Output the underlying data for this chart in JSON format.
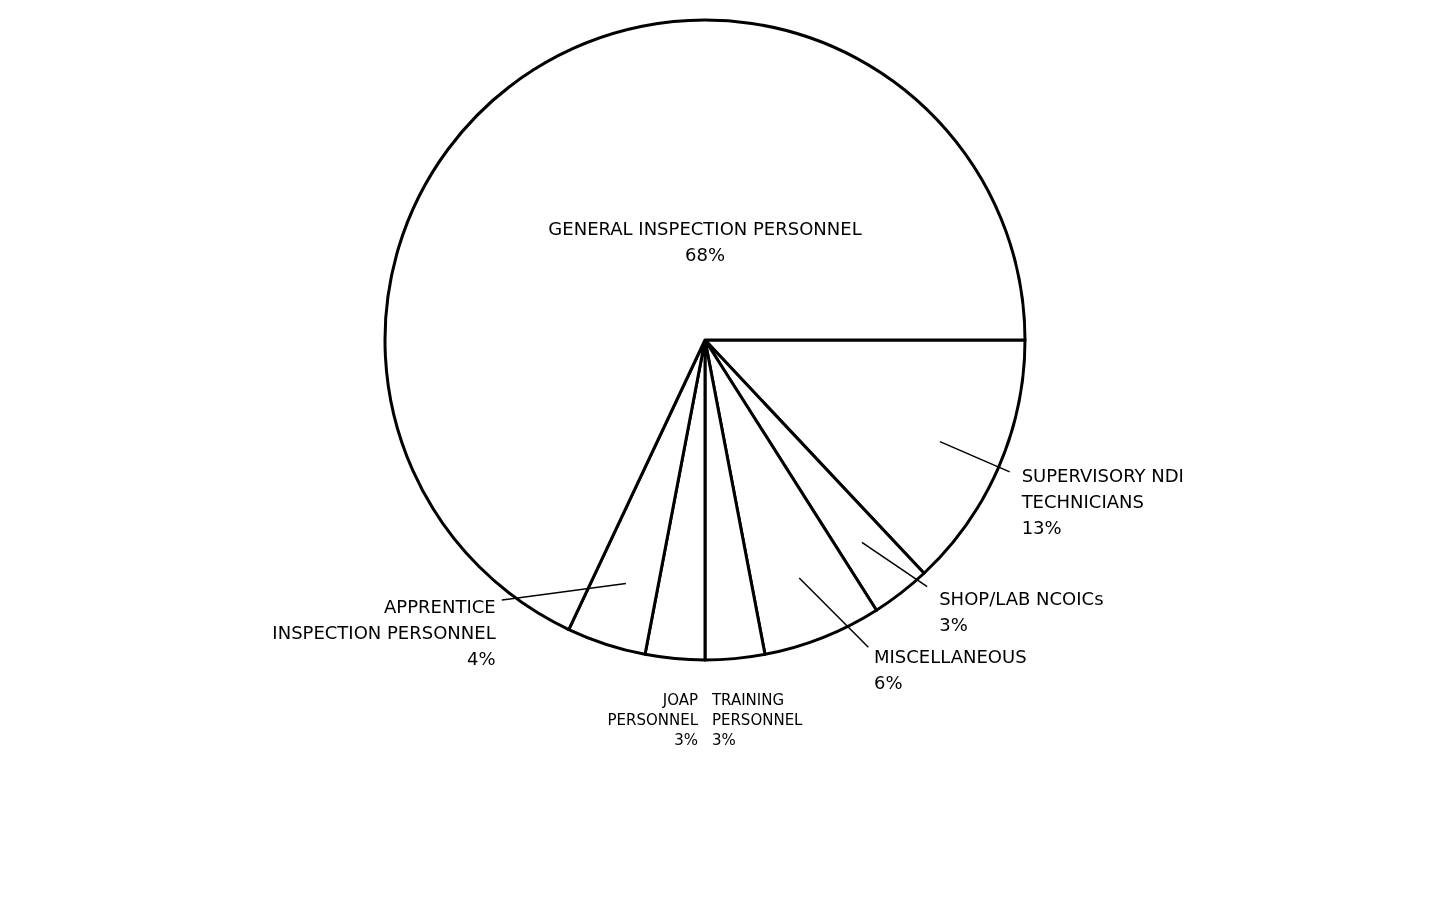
{
  "chart_data": {
    "type": "pie",
    "categories": [
      "SUPERVISORY NDI TECHNICIANS",
      "SHOP/LAB NCOICs",
      "MISCELLANEOUS",
      "TRAINING PERSONNEL",
      "JOAP PERSONNEL",
      "APPRENTICE INSPECTION PERSONNEL",
      "GENERAL INSPECTION PERSONNEL"
    ],
    "values": [
      13,
      3,
      6,
      3,
      3,
      4,
      68
    ],
    "value_labels": [
      "13%",
      "3%",
      "6%",
      "3%",
      "3%",
      "4%",
      "68%"
    ],
    "colors": [
      "#ffffff",
      "#ffffff",
      "#ffffff",
      "#ffffff",
      "#ffffff",
      "#ffffff",
      "#ffffff"
    ]
  }
}
